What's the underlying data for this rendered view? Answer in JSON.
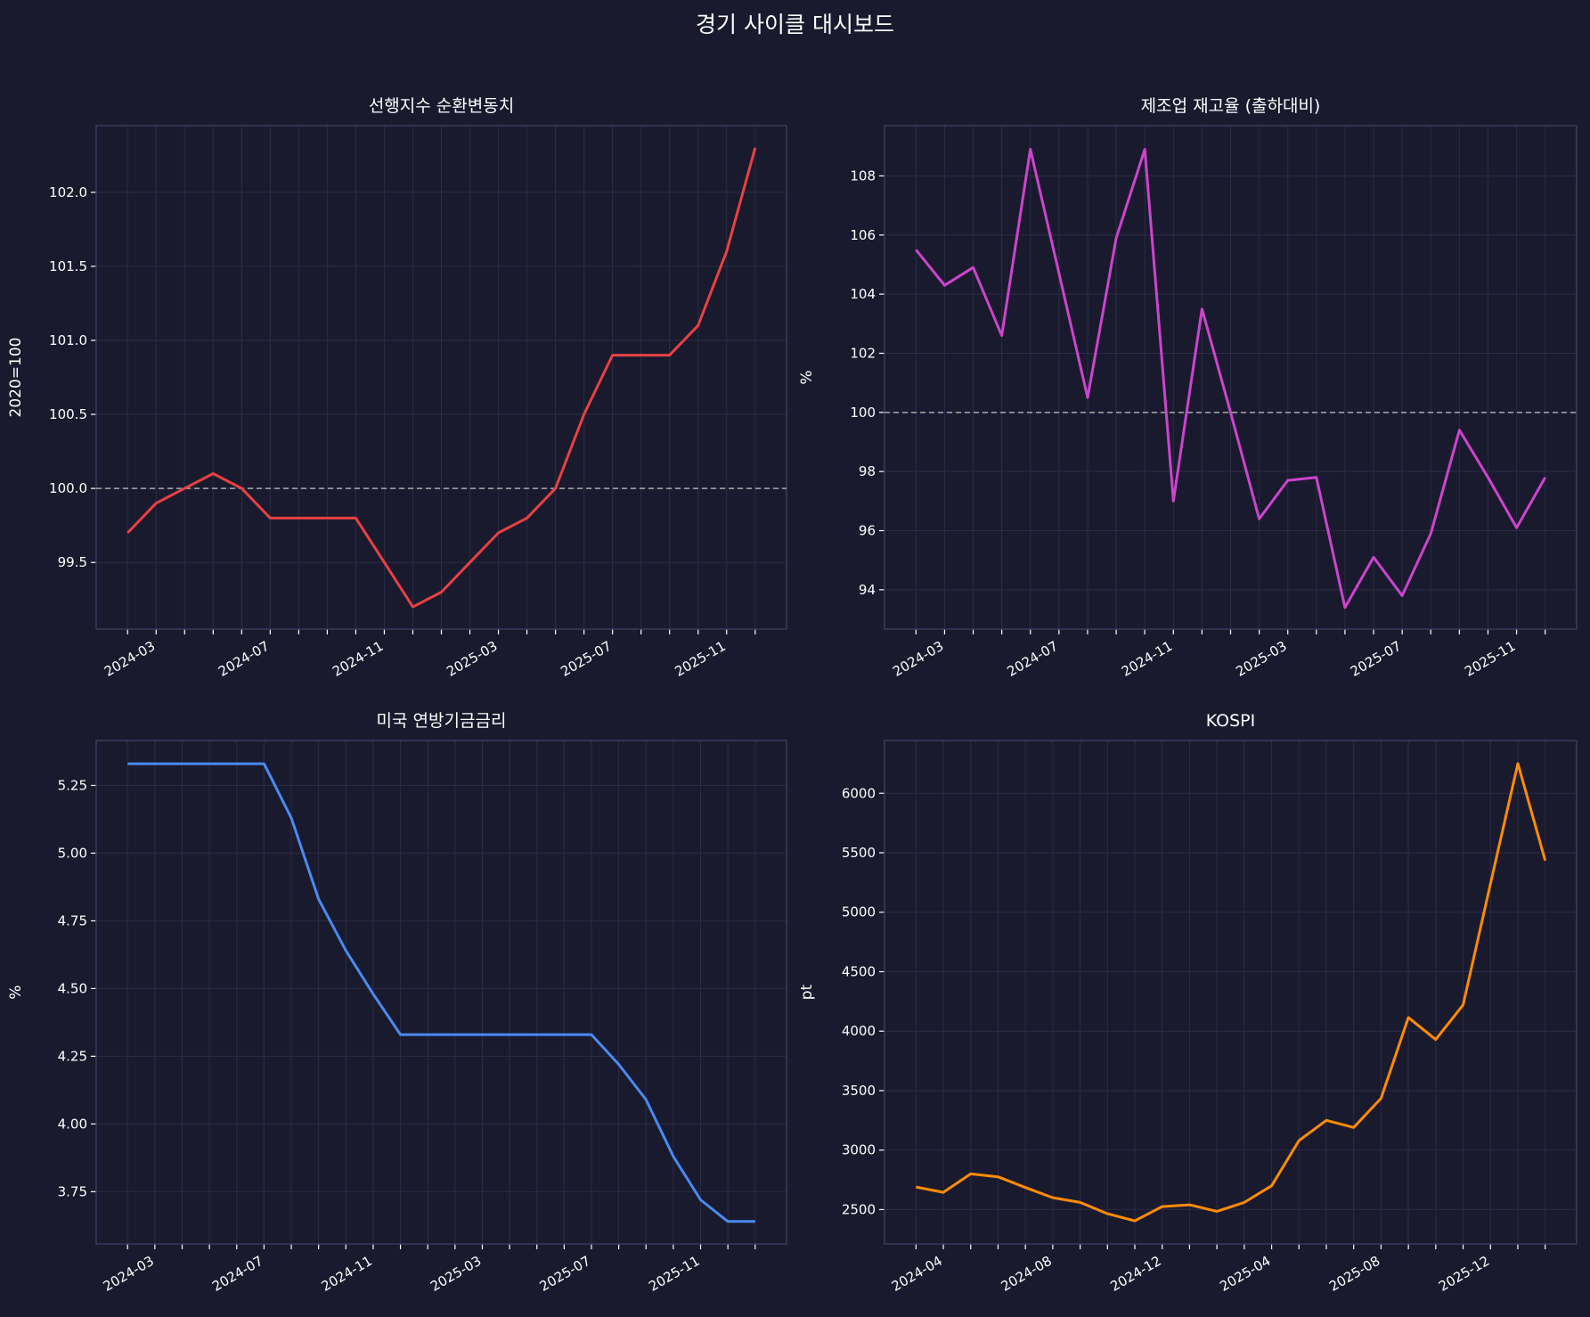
{
  "title": "경기 사이클 대시보드",
  "colors": {
    "background": "#1a1a2e",
    "grid": "#2b2b48",
    "spine": "#3a3a5c",
    "reference": "#aaaaaa"
  },
  "chart_data": [
    {
      "type": "line",
      "title": "선행지수 순환변동치",
      "ylabel": "2020=100",
      "color": "#e84142",
      "categories": [
        "2024-02",
        "2024-03",
        "2024-04",
        "2024-05",
        "2024-06",
        "2024-07",
        "2024-08",
        "2024-09",
        "2024-10",
        "2024-11",
        "2024-12",
        "2025-01",
        "2025-02",
        "2025-03",
        "2025-04",
        "2025-05",
        "2025-06",
        "2025-07",
        "2025-08",
        "2025-09",
        "2025-10",
        "2025-11",
        "2025-12"
      ],
      "values": [
        99.7,
        99.9,
        100.0,
        100.1,
        100.0,
        99.8,
        99.8,
        99.8,
        99.8,
        99.5,
        99.2,
        99.3,
        99.5,
        99.7,
        99.8,
        100.0,
        100.5,
        100.9,
        100.9,
        100.9,
        101.1,
        101.6,
        102.3
      ],
      "xtick_labels": [
        "2024-03",
        "2024-07",
        "2024-11",
        "2025-03",
        "2025-07",
        "2025-11"
      ],
      "yticks": [
        99.5,
        100.0,
        100.5,
        101.0,
        101.5,
        102.0
      ],
      "ytick_labels": [
        "99.5",
        "100.0",
        "100.5",
        "101.0",
        "101.5",
        "102.0"
      ],
      "ylim": [
        99.05,
        102.45
      ],
      "reference_line": 100,
      "grid": true
    },
    {
      "type": "line",
      "title": "제조업 재고율 (출하대비)",
      "ylabel": "%",
      "color": "#cc44cc",
      "categories": [
        "2024-02",
        "2024-03",
        "2024-04",
        "2024-05",
        "2024-06",
        "2024-07",
        "2024-08",
        "2024-09",
        "2024-10",
        "2024-11",
        "2024-12",
        "2025-01",
        "2025-02",
        "2025-03",
        "2025-04",
        "2025-05",
        "2025-06",
        "2025-07",
        "2025-08",
        "2025-09",
        "2025-10",
        "2025-11",
        "2025-12"
      ],
      "values": [
        105.5,
        104.3,
        104.9,
        102.6,
        108.9,
        104.7,
        100.5,
        105.9,
        108.9,
        97.0,
        103.5,
        100.0,
        96.4,
        97.7,
        97.8,
        93.4,
        95.1,
        93.8,
        95.9,
        99.4,
        97.8,
        96.1,
        97.8
      ],
      "xtick_labels": [
        "2024-03",
        "2024-07",
        "2024-11",
        "2025-03",
        "2025-07",
        "2025-11"
      ],
      "yticks": [
        94,
        96,
        98,
        100,
        102,
        104,
        106,
        108
      ],
      "ytick_labels": [
        "94",
        "96",
        "98",
        "100",
        "102",
        "104",
        "106",
        "108"
      ],
      "ylim": [
        92.67,
        109.7
      ],
      "reference_line": 100,
      "grid": true
    },
    {
      "type": "line",
      "title": "미국 연방기금금리",
      "ylabel": "%",
      "color": "#4a8af0",
      "categories": [
        "2024-02",
        "2024-03",
        "2024-04",
        "2024-05",
        "2024-06",
        "2024-07",
        "2024-08",
        "2024-09",
        "2024-10",
        "2024-11",
        "2024-12",
        "2025-01",
        "2025-02",
        "2025-03",
        "2025-04",
        "2025-05",
        "2025-06",
        "2025-07",
        "2025-08",
        "2025-09",
        "2025-10",
        "2025-11",
        "2025-12",
        "2026-01"
      ],
      "values": [
        5.33,
        5.33,
        5.33,
        5.33,
        5.33,
        5.33,
        5.13,
        4.83,
        4.64,
        4.48,
        4.33,
        4.33,
        4.33,
        4.33,
        4.33,
        4.33,
        4.33,
        4.33,
        4.22,
        4.09,
        3.88,
        3.72,
        3.64,
        3.64
      ],
      "xtick_labels": [
        "2024-03",
        "2024-07",
        "2024-11",
        "2025-03",
        "2025-07",
        "2025-11"
      ],
      "yticks": [
        3.75,
        4.0,
        4.25,
        4.5,
        4.75,
        5.0,
        5.25
      ],
      "ytick_labels": [
        "3.75",
        "4.00",
        "4.25",
        "4.50",
        "4.75",
        "5.00",
        "5.25"
      ],
      "ylim": [
        3.557,
        5.416
      ],
      "grid": true
    },
    {
      "type": "line",
      "title": "KOSPI",
      "ylabel": "pt",
      "color": "#ff8c00",
      "categories": [
        "2024-03",
        "2024-04",
        "2024-05",
        "2024-06",
        "2024-07",
        "2024-08",
        "2024-09",
        "2024-10",
        "2024-11",
        "2024-12",
        "2025-01",
        "2025-02",
        "2025-03",
        "2025-04",
        "2025-05",
        "2025-06",
        "2025-07",
        "2025-08",
        "2025-09",
        "2025-10",
        "2025-11",
        "2025-12",
        "2026-01",
        "2026-02"
      ],
      "values": [
        2690,
        2645,
        2800,
        2775,
        2685,
        2600,
        2560,
        2465,
        2405,
        2525,
        2540,
        2485,
        2560,
        2700,
        3080,
        3250,
        3190,
        3435,
        4115,
        3930,
        4220,
        5240,
        6250,
        5435
      ],
      "xtick_labels": [
        "2024-04",
        "2024-08",
        "2024-12",
        "2025-04",
        "2025-08",
        "2025-12"
      ],
      "yticks": [
        2500,
        3000,
        3500,
        4000,
        4500,
        5000,
        5500,
        6000
      ],
      "ytick_labels": [
        "2500",
        "3000",
        "3500",
        "4000",
        "4500",
        "5000",
        "5500",
        "6000"
      ],
      "ylim": [
        2211,
        6444
      ],
      "grid": true
    }
  ]
}
